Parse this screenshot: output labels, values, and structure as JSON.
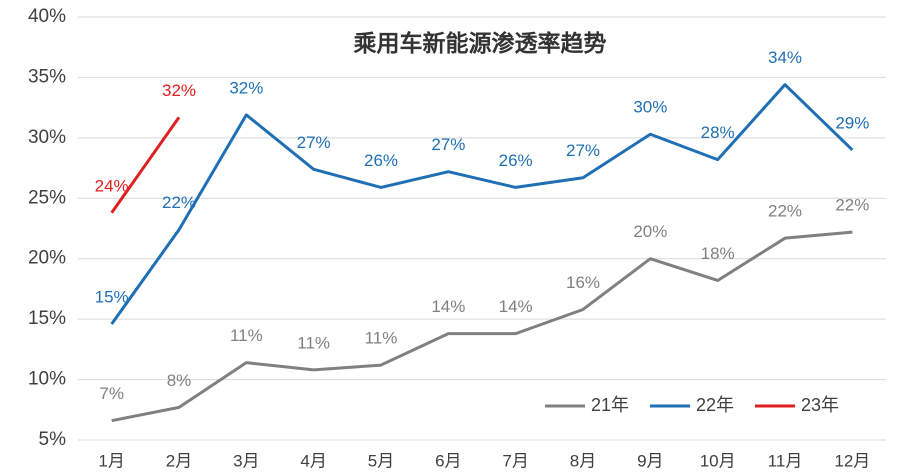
{
  "chart_data": {
    "type": "line",
    "title": "乘用车新能源渗透率趋势",
    "categories": [
      "1月",
      "2月",
      "3月",
      "4月",
      "5月",
      "6月",
      "7月",
      "8月",
      "9月",
      "10月",
      "11月",
      "12月"
    ],
    "series": [
      {
        "name": "21年",
        "color": "#808080",
        "values": [
          6.6,
          7.7,
          11.4,
          10.8,
          11.2,
          13.8,
          13.8,
          15.8,
          20.0,
          18.2,
          21.7,
          22.2
        ],
        "value_labels": [
          "7%",
          "8%",
          "11%",
          "11%",
          "11%",
          "14%",
          "14%",
          "16%",
          "20%",
          "18%",
          "22%",
          "22%"
        ]
      },
      {
        "name": "22年",
        "color": "#1f6fb5",
        "values": [
          14.6,
          22.4,
          31.9,
          27.4,
          25.9,
          27.2,
          25.9,
          26.7,
          30.3,
          28.2,
          34.4,
          29.0
        ],
        "value_labels": [
          "15%",
          "22%",
          "32%",
          "27%",
          "26%",
          "27%",
          "26%",
          "27%",
          "30%",
          "28%",
          "34%",
          "29%"
        ]
      },
      {
        "name": "23年",
        "color": "#e02020",
        "values": [
          23.8,
          31.7,
          null,
          null,
          null,
          null,
          null,
          null,
          null,
          null,
          null,
          null
        ],
        "value_labels": [
          "24%",
          "32%",
          null,
          null,
          null,
          null,
          null,
          null,
          null,
          null,
          null,
          null
        ]
      }
    ],
    "ylim": [
      5,
      40
    ],
    "yticks": [
      {
        "value": 5,
        "label": "5%"
      },
      {
        "value": 10,
        "label": "10%"
      },
      {
        "value": 15,
        "label": "15%"
      },
      {
        "value": 20,
        "label": "20%"
      },
      {
        "value": 25,
        "label": "25%"
      },
      {
        "value": 30,
        "label": "30%"
      },
      {
        "value": 35,
        "label": "35%"
      },
      {
        "value": 40,
        "label": "40%"
      }
    ],
    "grid": true,
    "legend": "lower right"
  }
}
